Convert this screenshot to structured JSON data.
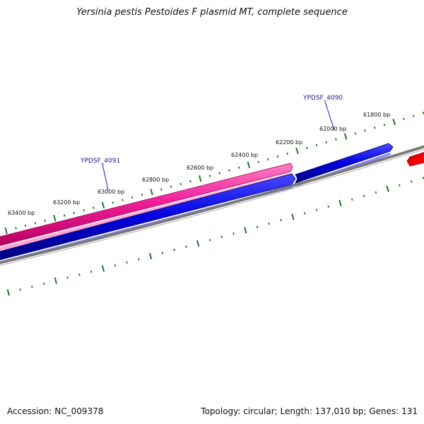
{
  "title": "Yersinia pestis Pestoides F plasmid MT, complete sequence",
  "footer": {
    "accession": "Accession: NC_009378",
    "summary": "Topology: circular; Length: 137,010 bp; Genes: 131"
  },
  "ruler": {
    "labels": [
      "63400 bp",
      "63200 bp",
      "63000 bp",
      "62800 bp",
      "62600 bp",
      "62400 bp",
      "62200 bp",
      "62000 bp",
      "61800 bp"
    ]
  },
  "genes": [
    {
      "label": "YPDSF_4091",
      "color": "#e8198c",
      "strand": "plus"
    },
    {
      "label": "YPDSF_4090",
      "color": "#0000dd",
      "strand": "minus"
    }
  ],
  "colors": {
    "plus_strand": "#e8198c",
    "minus_strand": "#0000dd",
    "backbone": "#7a7a7a",
    "ticks": "#1a7a1a",
    "off_page_feature": "#ee0000"
  }
}
